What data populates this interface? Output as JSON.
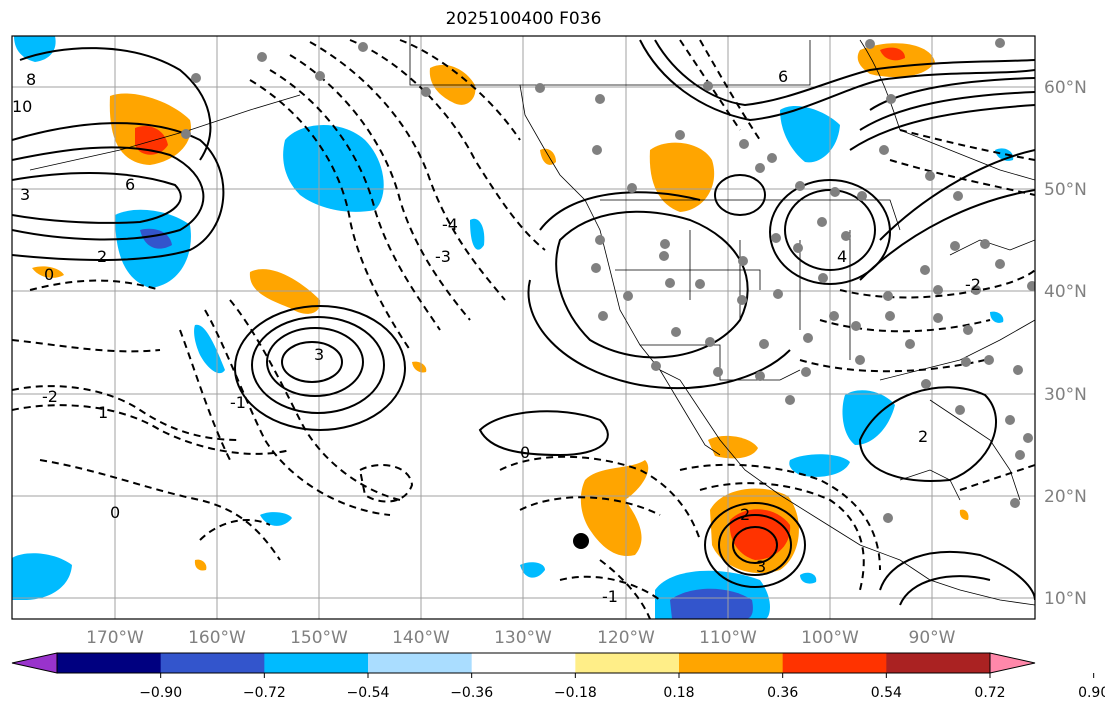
{
  "title": "2025100400 F036",
  "lon_labels": [
    "170°W",
    "160°W",
    "150°W",
    "140°W",
    "130°W",
    "120°W",
    "110°W",
    "100°W",
    "90°W"
  ],
  "lat_labels": [
    "60°N",
    "50°N",
    "40°N",
    "30°N",
    "20°N",
    "10°N"
  ],
  "colorbar": {
    "colors": [
      "#9933cc",
      "#000080",
      "#3355cc",
      "#00bbff",
      "#aaddff",
      "#ffffff",
      "#ffee88",
      "#ffa500",
      "#ff3300",
      "#aa2222",
      "#ff88aa"
    ],
    "labels": [
      "−0.90",
      "−0.72",
      "−0.54",
      "−0.36",
      "−0.18",
      "0.18",
      "0.36",
      "0.54",
      "0.72",
      "0.90"
    ]
  },
  "contour_labels": [
    "8",
    "10",
    "6",
    "3",
    "2",
    "0",
    "-3",
    "-4",
    "-2",
    "1",
    "-1",
    "3",
    "2",
    "6",
    "4",
    "0",
    "-1",
    "0",
    "3",
    "2",
    "-2"
  ]
}
